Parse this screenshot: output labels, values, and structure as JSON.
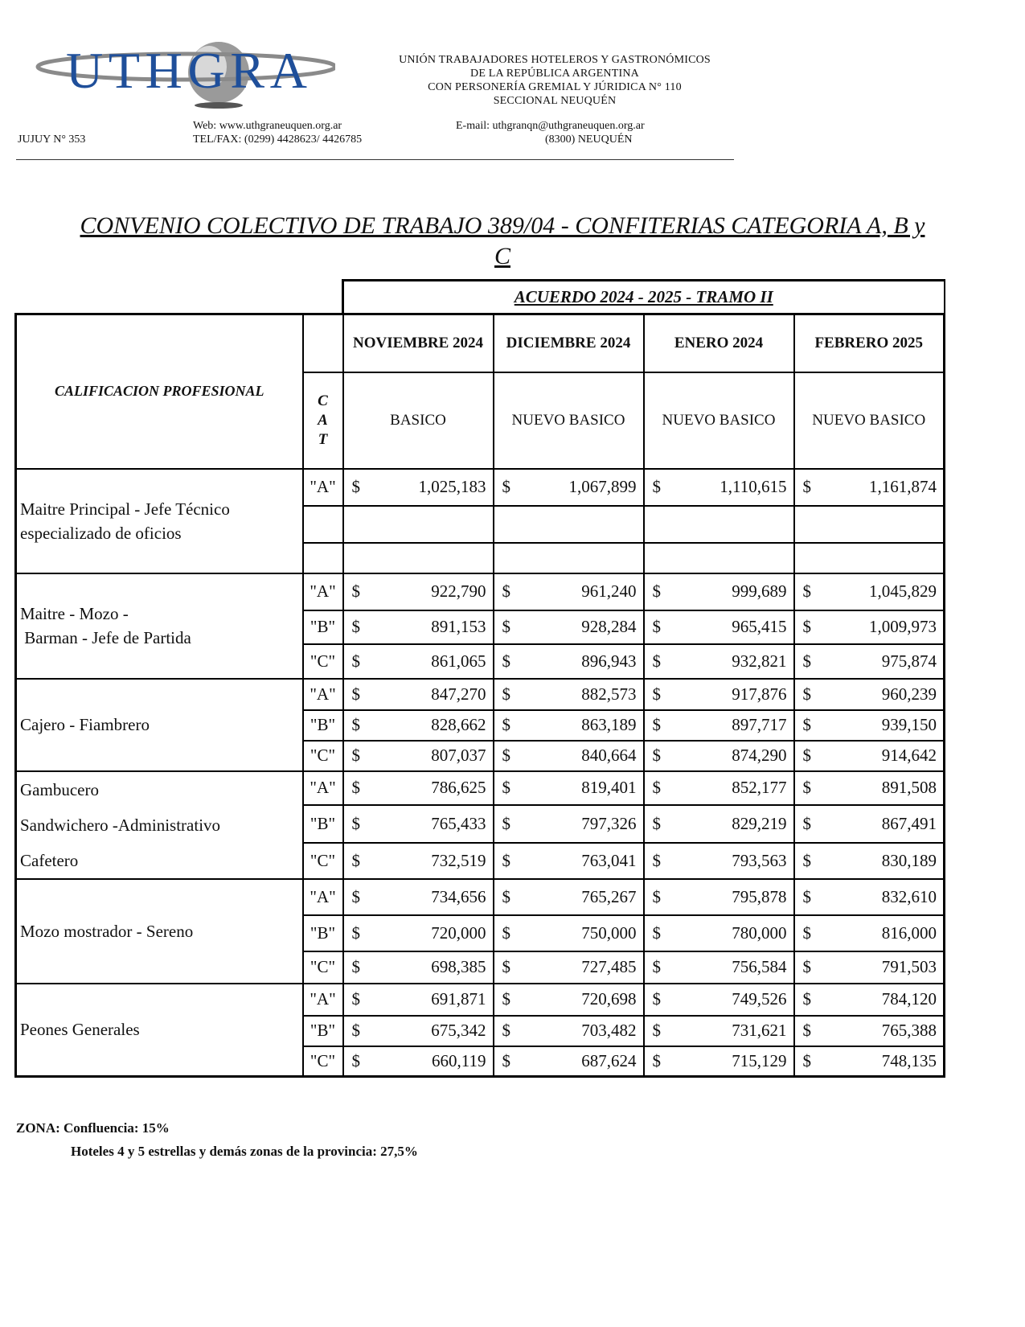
{
  "header": {
    "logo_text": "UTHGRA",
    "org_lines": [
      "UNIÓN TRABAJADORES HOTELEROS  Y GASTRONÓMICOS",
      "DE LA REPÚBLICA ARGENTINA",
      "CON PERSONERÍA GREMIAL Y JÚRIDICA N° 110",
      "SECCIONAL NEUQUÉN"
    ],
    "address": "JUJUY N° 353",
    "web": "Web: www.uthgraneuquen.org.ar",
    "tel": "TEL/FAX: (0299) 4428623/ 4426785",
    "email": "E-mail: uthgranqn@uthgraneuquen.org.ar",
    "city": "(8300) NEUQUÉN",
    "colors": {
      "logo_blue": "#1f4f9a",
      "logo_gray": "#8a8a8a"
    }
  },
  "title_line1": "CONVENIO COLECTIVO DE TRABAJO 389/04 - CONFITERIAS CATEGORIA A, B y",
  "title_line2": "C",
  "table": {
    "agreement": "ACUERDO 2024 - 2025 - TRAMO II",
    "qualification_header": "CALIFICACION PROFESIONAL",
    "cat_header": [
      "C",
      "A",
      "T"
    ],
    "months": [
      "NOVIEMBRE 2024",
      "DICIEMBRE 2024",
      "ENERO 2024",
      "FEBRERO 2025"
    ],
    "subheaders": [
      "BASICO",
      "NUEVO BASICO",
      "NUEVO BASICO",
      "NUEVO BASICO"
    ],
    "currency": "$",
    "groups": [
      {
        "label": [
          "Maitre Principal - Jefe Técnico",
          "especializado de oficios"
        ],
        "rows": [
          {
            "cat": "\"A\"",
            "values": [
              "1,025,183",
              "1,067,899",
              "1,110,615",
              "1,161,874"
            ]
          },
          {
            "cat": "",
            "values": [
              "",
              "",
              "",
              ""
            ]
          },
          {
            "cat": "",
            "values": [
              "",
              "",
              "",
              ""
            ]
          }
        ]
      },
      {
        "label": [
          "Maitre - Mozo -",
          " Barman - Jefe de Partida"
        ],
        "rows": [
          {
            "cat": "\"A\"",
            "values": [
              "922,790",
              "961,240",
              "999,689",
              "1,045,829"
            ]
          },
          {
            "cat": "\"B\"",
            "values": [
              "891,153",
              "928,284",
              "965,415",
              "1,009,973"
            ]
          },
          {
            "cat": "\"C\"",
            "values": [
              "861,065",
              "896,943",
              "932,821",
              "975,874"
            ]
          }
        ]
      },
      {
        "label": [
          "Cajero - Fiambrero"
        ],
        "rows": [
          {
            "cat": "\"A\"",
            "values": [
              "847,270",
              "882,573",
              "917,876",
              "960,239"
            ]
          },
          {
            "cat": "\"B\"",
            "values": [
              "828,662",
              "863,189",
              "897,717",
              "939,150"
            ]
          },
          {
            "cat": "\"C\"",
            "values": [
              "807,037",
              "840,664",
              "874,290",
              "914,642"
            ]
          }
        ]
      },
      {
        "label": [
          "Gambucero",
          "Sandwichero -Administrativo",
          "Cafetero"
        ],
        "rows": [
          {
            "cat": "\"A\"",
            "values": [
              "786,625",
              "819,401",
              "852,177",
              "891,508"
            ]
          },
          {
            "cat": "\"B\"",
            "values": [
              "765,433",
              "797,326",
              "829,219",
              "867,491"
            ]
          },
          {
            "cat": "\"C\"",
            "values": [
              "732,519",
              "763,041",
              "793,563",
              "830,189"
            ]
          }
        ]
      },
      {
        "label": [
          "Mozo mostrador - Sereno"
        ],
        "rows": [
          {
            "cat": "\"A\"",
            "values": [
              "734,656",
              "765,267",
              "795,878",
              "832,610"
            ]
          },
          {
            "cat": "\"B\"",
            "values": [
              "720,000",
              "750,000",
              "780,000",
              "816,000"
            ]
          },
          {
            "cat": "\"C\"",
            "values": [
              "698,385",
              "727,485",
              "756,584",
              "791,503"
            ]
          }
        ]
      },
      {
        "label": [
          "Peones Generales"
        ],
        "rows": [
          {
            "cat": "\"A\"",
            "values": [
              "691,871",
              "720,698",
              "749,526",
              "784,120"
            ]
          },
          {
            "cat": "\"B\"",
            "values": [
              "675,342",
              "703,482",
              "731,621",
              "765,388"
            ]
          },
          {
            "cat": "\"C\"",
            "values": [
              "660,119",
              "687,624",
              "715,129",
              "748,135"
            ]
          }
        ]
      }
    ]
  },
  "zona": {
    "line1": "ZONA:  Confluencia:  15%",
    "line2": "Hoteles 4 y 5 estrellas y demás zonas de la provincia: 27,5%"
  }
}
